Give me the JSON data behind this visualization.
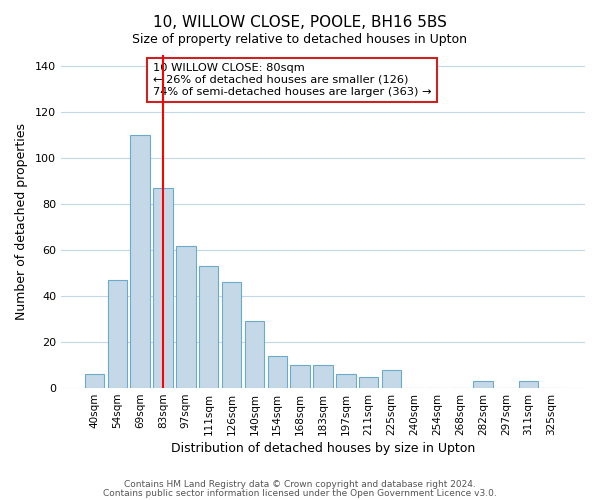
{
  "title": "10, WILLOW CLOSE, POOLE, BH16 5BS",
  "subtitle": "Size of property relative to detached houses in Upton",
  "xlabel": "Distribution of detached houses by size in Upton",
  "ylabel": "Number of detached properties",
  "bar_labels": [
    "40sqm",
    "54sqm",
    "69sqm",
    "83sqm",
    "97sqm",
    "111sqm",
    "126sqm",
    "140sqm",
    "154sqm",
    "168sqm",
    "183sqm",
    "197sqm",
    "211sqm",
    "225sqm",
    "240sqm",
    "254sqm",
    "268sqm",
    "282sqm",
    "297sqm",
    "311sqm",
    "325sqm"
  ],
  "bar_values": [
    6,
    47,
    110,
    87,
    62,
    53,
    46,
    29,
    14,
    10,
    10,
    6,
    5,
    8,
    0,
    0,
    0,
    3,
    0,
    3,
    0
  ],
  "bar_color": "#c5d8e8",
  "bar_edge_color": "#6aabcc",
  "ylim": [
    0,
    145
  ],
  "yticks": [
    0,
    20,
    40,
    60,
    80,
    100,
    120,
    140
  ],
  "property_line_x": 3,
  "property_line_label": "10 WILLOW CLOSE: 80sqm",
  "annotation_line1": "← 26% of detached houses are smaller (126)",
  "annotation_line2": "74% of semi-detached houses are larger (363) →",
  "footer1": "Contains HM Land Registry data © Crown copyright and database right 2024.",
  "footer2": "Contains public sector information licensed under the Open Government Licence v3.0.",
  "background_color": "#ffffff",
  "grid_color": "#c0d8e8"
}
